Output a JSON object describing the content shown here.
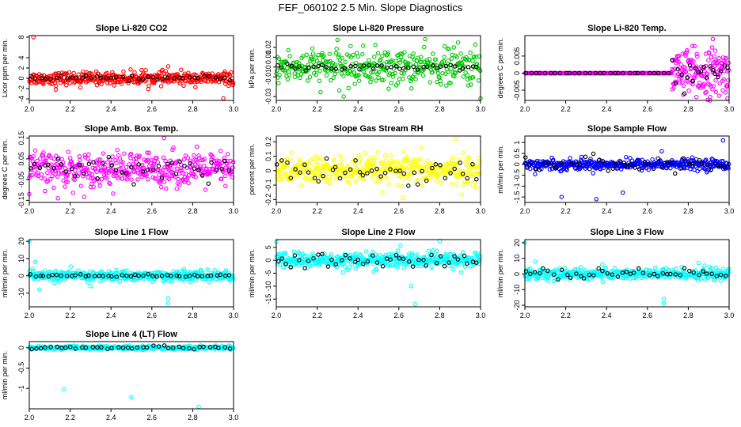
{
  "title": "FEF_060102  2.5 Min. Slope Diagnostics",
  "colors": {
    "red": "#ff0000",
    "green": "#00c800",
    "magenta": "#ff00ff",
    "yellow": "#ffff00",
    "blue": "#0000ff",
    "cyan": "#00ffff",
    "black": "#000000"
  },
  "chart_data": [
    {
      "type": "scatter",
      "title": "Slope Li-820 CO2",
      "ylabel": "Licor ppm per min.",
      "color": "#ff0000",
      "xlim": [
        2.0,
        3.0
      ],
      "ylim": [
        -4.3,
        8.3
      ],
      "xticks": [
        2.0,
        2.2,
        2.4,
        2.6,
        2.8,
        3.0
      ],
      "yticks": [
        -4,
        -2,
        0,
        2,
        4,
        8
      ],
      "series": [
        {
          "color": "#ff0000",
          "spread": 0.6,
          "n": 400
        },
        {
          "color": "#000000",
          "spread": 0.2,
          "n": 40
        }
      ],
      "outliers": [
        [
          2.02,
          8.0
        ],
        [
          2.68,
          2.3
        ],
        [
          2.13,
          -2.2
        ],
        [
          2.95,
          -3.9
        ],
        [
          2.25,
          -1.8
        ],
        [
          2.55,
          1.6
        ]
      ]
    },
    {
      "type": "scatter",
      "title": "Slope Li-820 Pressure",
      "ylabel": "kPa per min.",
      "color": "#00c800",
      "xlim": [
        2.0,
        3.0
      ],
      "ylim": [
        -0.034,
        0.032
      ],
      "xticks": [
        2.0,
        2.2,
        2.4,
        2.6,
        2.8,
        3.0
      ],
      "yticks": [
        -0.03,
        -0.01,
        0.0,
        0.01,
        0.02
      ],
      "series": [
        {
          "color": "#00c800",
          "spread": 0.009,
          "n": 380
        },
        {
          "color": "#000000",
          "spread": 0.002,
          "n": 45
        }
      ],
      "outliers": [
        [
          2.33,
          -0.03
        ],
        [
          3.0,
          -0.032
        ],
        [
          2.89,
          0.025
        ],
        [
          2.55,
          -0.022
        ]
      ]
    },
    {
      "type": "scatter",
      "title": "Slope Li-820 Temp.",
      "ylabel": "degrees C per min.",
      "color": "#ff00ff",
      "xlim": [
        2.0,
        3.0
      ],
      "ylim": [
        -0.008,
        0.011
      ],
      "xticks": [
        2.0,
        2.2,
        2.4,
        2.6,
        2.8,
        3.0
      ],
      "yticks": [
        -0.005,
        0.0,
        0.005
      ],
      "series": [
        {
          "color": "#ff00ff",
          "spread": 0.0,
          "n": 260,
          "xmax": 2.72
        },
        {
          "color": "#ff00ff",
          "spread": 0.0035,
          "n": 160,
          "xmin": 2.72
        },
        {
          "color": "#000000",
          "spread": 0.0,
          "n": 30,
          "xmax": 2.72
        },
        {
          "color": "#000000",
          "spread": 0.0025,
          "n": 20,
          "xmin": 2.72
        }
      ],
      "outliers": [
        [
          2.92,
          0.01
        ],
        [
          2.84,
          -0.007
        ]
      ]
    },
    {
      "type": "scatter",
      "title": "Slope Amb. Box Temp.",
      "ylabel": "degrees C per min.",
      "color": "#ff00ff",
      "xlim": [
        2.0,
        3.0
      ],
      "ylim": [
        -0.16,
        0.16
      ],
      "xticks": [
        2.0,
        2.2,
        2.4,
        2.6,
        2.8,
        3.0
      ],
      "yticks": [
        -0.15,
        -0.05,
        0.05,
        0.15
      ],
      "series": [
        {
          "color": "#ff00ff",
          "spread": 0.04,
          "n": 420
        },
        {
          "color": "#000000",
          "spread": 0.03,
          "n": 45
        }
      ],
      "outliers": [
        [
          2.66,
          0.15
        ],
        [
          2.14,
          -0.14
        ],
        [
          2.0,
          -0.12
        ]
      ]
    },
    {
      "type": "scatter",
      "title": "Slope Gas Stream RH",
      "ylabel": "percent per min.",
      "color": "#ffff00",
      "xlim": [
        2.0,
        3.0
      ],
      "ylim": [
        -0.22,
        0.24
      ],
      "xticks": [
        2.0,
        2.2,
        2.4,
        2.6,
        2.8,
        3.0
      ],
      "yticks": [
        -0.2,
        -0.1,
        0.0,
        0.1,
        0.2
      ],
      "series": [
        {
          "color": "#ffff00",
          "spread": 0.05,
          "n": 420
        },
        {
          "color": "#000000",
          "spread": 0.04,
          "n": 45
        }
      ],
      "outliers": [
        [
          2.88,
          0.22
        ],
        [
          2.62,
          -0.19
        ]
      ]
    },
    {
      "type": "scatter",
      "title": "Slope Sample Flow",
      "ylabel": "ml/min per min.",
      "color": "#0000ff",
      "xlim": [
        2.0,
        3.0
      ],
      "ylim": [
        -1.75,
        1.3
      ],
      "xticks": [
        2.0,
        2.2,
        2.4,
        2.6,
        2.8,
        3.0
      ],
      "yticks": [
        -1.5,
        -1.0,
        -0.5,
        0.0,
        0.5,
        1.0
      ],
      "series": [
        {
          "color": "#0000ff",
          "spread": 0.12,
          "n": 420
        },
        {
          "color": "#000000",
          "spread": 0.2,
          "n": 45
        }
      ],
      "outliers": [
        [
          2.18,
          -1.5
        ],
        [
          2.35,
          -1.6
        ],
        [
          2.48,
          -1.3
        ],
        [
          2.97,
          1.1
        ],
        [
          2.67,
          0.6
        ],
        [
          2.05,
          -0.45
        ]
      ]
    },
    {
      "type": "scatter",
      "title": "Slope Line 1 Flow",
      "ylabel": "ml/min per min.",
      "color": "#00ffff",
      "xlim": [
        2.0,
        3.0
      ],
      "ylim": [
        -18,
        21
      ],
      "xticks": [
        2.0,
        2.2,
        2.4,
        2.6,
        2.8,
        3.0
      ],
      "yticks": [
        -10,
        0,
        10,
        20
      ],
      "series": [
        {
          "color": "#00ffff",
          "spread": 1.5,
          "n": 420
        },
        {
          "color": "#000000",
          "spread": 0.4,
          "n": 45
        }
      ],
      "outliers": [
        [
          2.0,
          20
        ],
        [
          2.68,
          -16
        ],
        [
          2.68,
          -13
        ],
        [
          2.03,
          8
        ],
        [
          2.3,
          -6
        ],
        [
          2.05,
          -8
        ]
      ]
    },
    {
      "type": "scatter",
      "title": "Slope Line 2 Flow",
      "ylabel": "ml/min per min.",
      "color": "#00ffff",
      "xlim": [
        2.0,
        3.0
      ],
      "ylim": [
        -18,
        8
      ],
      "xticks": [
        2.0,
        2.2,
        2.4,
        2.6,
        2.8,
        3.0
      ],
      "yticks": [
        -15,
        -10,
        -5,
        0,
        5
      ],
      "series": [
        {
          "color": "#00ffff",
          "spread": 1.5,
          "n": 420
        },
        {
          "color": "#000000",
          "spread": 1.5,
          "n": 45
        }
      ],
      "outliers": [
        [
          2.68,
          -17
        ],
        [
          2.66,
          -10
        ],
        [
          2.8,
          7.5
        ],
        [
          2.0,
          7.2
        ]
      ]
    },
    {
      "type": "scatter",
      "title": "Slope Line 3 Flow",
      "ylabel": "ml/min per min.",
      "color": "#00ffff",
      "xlim": [
        2.0,
        3.0
      ],
      "ylim": [
        -21,
        22
      ],
      "xticks": [
        2.0,
        2.2,
        2.4,
        2.6,
        2.8,
        3.0
      ],
      "yticks": [
        -20,
        -10,
        0,
        10,
        20
      ],
      "series": [
        {
          "color": "#00ffff",
          "spread": 1.8,
          "n": 420
        },
        {
          "color": "#000000",
          "spread": 1.8,
          "n": 45
        }
      ],
      "outliers": [
        [
          2.0,
          20
        ],
        [
          2.68,
          -19
        ],
        [
          2.68,
          -16
        ],
        [
          2.05,
          8
        ],
        [
          2.85,
          7
        ]
      ]
    },
    {
      "type": "scatter",
      "title": "Slope Line 4 (LT) Flow",
      "ylabel": "ml/min per min.",
      "color": "#00ffff",
      "xlim": [
        2.0,
        3.0
      ],
      "ylim": [
        -1.5,
        0.15
      ],
      "xticks": [
        2.0,
        2.2,
        2.4,
        2.6,
        2.8,
        3.0
      ],
      "yticks": [
        -1.0,
        -0.5,
        0.0
      ],
      "series": [
        {
          "color": "#00ffff",
          "spread": 0.02,
          "n": 400
        },
        {
          "color": "#000000",
          "spread": 0.02,
          "n": 40
        }
      ],
      "outliers": [
        [
          2.17,
          -1.02
        ],
        [
          2.5,
          -1.22
        ],
        [
          2.83,
          -1.45
        ]
      ]
    }
  ]
}
